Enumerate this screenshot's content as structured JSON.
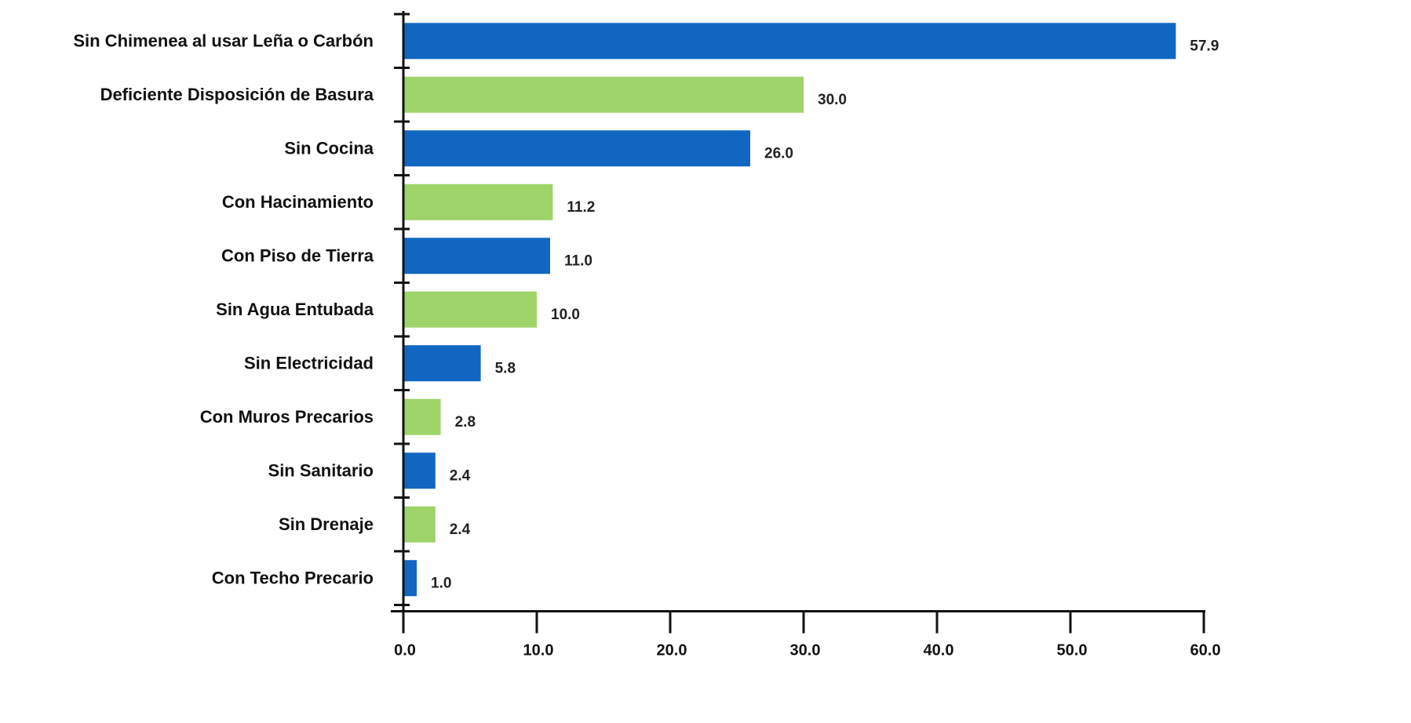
{
  "chart_data": {
    "type": "bar",
    "orientation": "horizontal",
    "title": "",
    "xlabel": "",
    "ylabel": "",
    "xlim": [
      0,
      60
    ],
    "grid": false,
    "legend": "none",
    "categories": [
      "Sin Chimenea al usar Leña o Carbón",
      "Deficiente Disposición de Basura",
      "Sin Cocina",
      "Con Hacinamiento",
      "Con Piso de Tierra",
      "Sin Agua Entubada",
      "Sin Electricidad",
      "Con Muros Precarios",
      "Sin Sanitario",
      "Sin Drenaje",
      "Con Techo Precario"
    ],
    "values": [
      57.9,
      30.0,
      26.0,
      11.2,
      11.0,
      10.0,
      5.8,
      2.8,
      2.4,
      2.4,
      1.0
    ],
    "value_labels": [
      "57.9",
      "30.0",
      "26.0",
      "11.2",
      "11.0",
      "10.0",
      "5.8",
      "2.8",
      "2.4",
      "2.4",
      "1.0"
    ],
    "bar_colors": [
      "#1166c2",
      "#9fd46a",
      "#1166c2",
      "#9fd46a",
      "#1166c2",
      "#9fd46a",
      "#1166c2",
      "#9fd46a",
      "#1166c2",
      "#9fd46a",
      "#1166c2"
    ],
    "x_ticks": [
      0,
      10,
      20,
      30,
      40,
      50,
      60
    ],
    "x_tick_labels": [
      "0.0",
      "10.0",
      "20.0",
      "30.0",
      "40.0",
      "50.0",
      "60.0"
    ]
  }
}
